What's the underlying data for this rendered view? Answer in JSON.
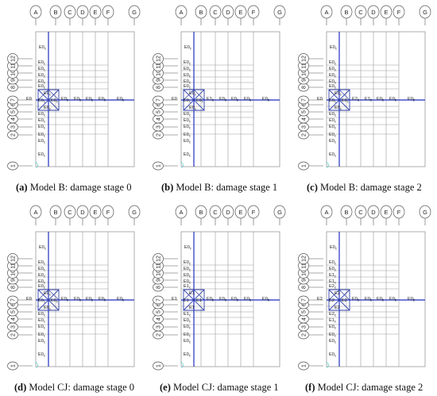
{
  "colors": {
    "grid": "#9a9a9a",
    "frame": "#8c8c8c",
    "axis": "#1f2fbf",
    "brace": "#2f3fa8",
    "text": "#222222",
    "bubble": "#555555",
    "support": "#40c4c4"
  },
  "column_labels": [
    "A",
    "B",
    "C",
    "D",
    "E",
    "F",
    "G"
  ],
  "row_labels": [
    "1",
    "2",
    "3",
    "4",
    "5",
    "6",
    "7",
    "8",
    "9",
    "10",
    "11",
    "12"
  ],
  "panels": [
    {
      "caption_letter": "(a)",
      "caption_text": "Model B: damage stage 0",
      "labels": {
        "top": "E0c",
        "upper": [
          "E0c",
          "E0c",
          "E0c",
          "E0c",
          "E0c"
        ],
        "left": "E0",
        "brace_top": "E0c",
        "brace_left": "E0c",
        "brace_right": "E0c",
        "brace_bottom": "E0c",
        "beams": [
          "E0b",
          "E0b",
          "E0b",
          "E0b",
          "E0b"
        ],
        "lower": [
          "E0c",
          "E0c",
          "E0c",
          "E0c",
          "E0c"
        ],
        "bottom": "E0c"
      }
    },
    {
      "caption_letter": "(b)",
      "caption_text": "Model B: damage stage 1",
      "labels": {
        "top": "E0c",
        "upper": [
          "E0c",
          "E0c",
          "E0c",
          "E0c",
          "E0c"
        ],
        "left": "E0",
        "brace_top": "E0c",
        "brace_left": "E0c",
        "brace_right": "E0c",
        "brace_bottom": "E0c",
        "beams": [
          "E1b",
          "E0b",
          "E0b",
          "E0b",
          "E0b"
        ],
        "lower": [
          "E0c",
          "E0c",
          "E0c",
          "E0c",
          "E0c"
        ],
        "bottom": "E0c"
      }
    },
    {
      "caption_letter": "(c)",
      "caption_text": "Model B: damage stage 2",
      "labels": {
        "top": "E0c",
        "upper": [
          "E0c",
          "E0c",
          "E0c",
          "E0c",
          "E0c"
        ],
        "left": "E0",
        "brace_top": "E0c",
        "brace_left": "E0c",
        "brace_right": "E0c",
        "brace_bottom": "E0c",
        "beams": [
          "E2b",
          "E1b",
          "E0b",
          "E0b",
          "E0b"
        ],
        "lower": [
          "E0c",
          "E0c",
          "E0c",
          "E0c",
          "E0c"
        ],
        "bottom": "E0c"
      }
    },
    {
      "caption_letter": "(d)",
      "caption_text": "Model CJ: damage stage 0",
      "labels": {
        "top": "E0c",
        "upper": [
          "E0c",
          "E0c",
          "E0c",
          "E0c",
          "E0c"
        ],
        "left": "E0",
        "brace_top": "E0c",
        "brace_left": "E0c",
        "brace_right": "E0c",
        "brace_bottom": "E0c",
        "beams": [
          "E0b",
          "E0b",
          "E0b",
          "E0b",
          "E0b"
        ],
        "lower": [
          "E0c",
          "E0c",
          "E0c",
          "E0c",
          "E0c"
        ],
        "bottom": "E0c"
      }
    },
    {
      "caption_letter": "(e)",
      "caption_text": "Model CJ: damage stage 1",
      "labels": {
        "top": "E0c",
        "upper": [
          "E0c",
          "E0c",
          "E0c",
          "E0c",
          "E1c"
        ],
        "left": "E1",
        "brace_top": "E1",
        "brace_left": "E1",
        "brace_right": "E1",
        "brace_bottom": "E1",
        "beams": [
          "E0b",
          "E0b",
          "E0b",
          "E0b",
          "E0b"
        ],
        "lower": [
          "E1c",
          "E0c",
          "E0c",
          "E0c",
          "E0c"
        ],
        "bottom": "E0c"
      }
    },
    {
      "caption_letter": "(f)",
      "caption_text": "Model CJ: damage stage 2",
      "labels": {
        "top": "E0c",
        "upper": [
          "E0c",
          "E0c",
          "E1c",
          "E1c",
          "E2c"
        ],
        "left": "E2",
        "brace_top": "E2",
        "brace_left": "E2",
        "brace_right": "E2",
        "brace_bottom": "E2",
        "beams": [
          "E0b",
          "E0b",
          "E0b",
          "E0b",
          "E0b"
        ],
        "lower": [
          "E2c",
          "E1c",
          "E0c",
          "E0c",
          "E0c"
        ],
        "bottom": "E0c"
      }
    }
  ]
}
